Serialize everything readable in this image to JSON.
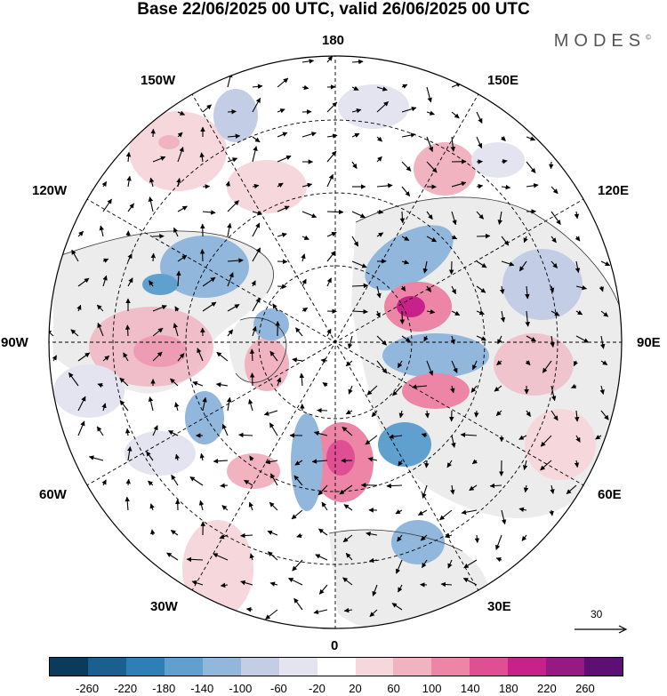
{
  "title": "Base 22/06/2025 00 UTC, valid 26/06/2025 00 UTC",
  "brand": "MODES",
  "brand_mark": "©",
  "map_labels": {
    "top": "180",
    "bottom": "0",
    "left": "90W",
    "right": "90E",
    "tl1": "150W",
    "tl2": "120W",
    "tr1": "150E",
    "tr2": "120E",
    "bl1": "60W",
    "bl2": "30W",
    "br1": "60E",
    "br2": "30E"
  },
  "reference_vector": "30",
  "colorbar": {
    "colors": [
      "#0b3a5c",
      "#1a5f8e",
      "#2e7fb5",
      "#5fa0cf",
      "#91b7dc",
      "#c3cde6",
      "#e4e4f1",
      "#ffffff",
      "#f6d8dc",
      "#f1b3c0",
      "#ec85a6",
      "#e04e94",
      "#c7228a",
      "#961a82",
      "#5e0f73"
    ],
    "ticks": [
      "-260",
      "-220",
      "-180",
      "-140",
      "-100",
      "-60",
      "-20",
      "20",
      "60",
      "100",
      "140",
      "180",
      "220",
      "260"
    ]
  },
  "field_colors": {
    "land": "#ececec",
    "ocean": "#ffffff",
    "grid": "#000000"
  }
}
